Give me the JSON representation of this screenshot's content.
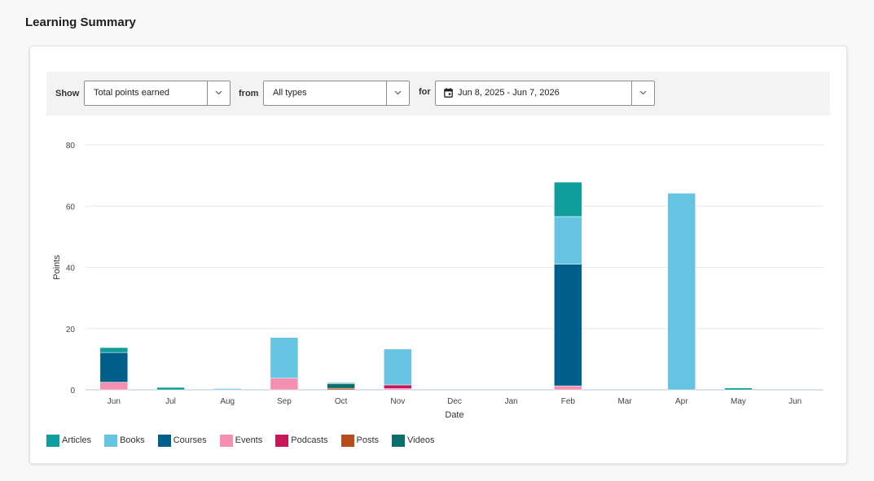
{
  "page": {
    "title": "Learning Summary"
  },
  "filters": {
    "show_label": "Show",
    "metric_value": "Total points earned",
    "from_label": "from",
    "type_value": "All types",
    "for_label": "for",
    "date_range_value": "Jun 8, 2025 - Jun 7, 2026"
  },
  "colors": {
    "Articles": "#0f9e9c",
    "Books": "#67c3e2",
    "Courses": "#005f8a",
    "Events": "#f590b0",
    "Podcasts": "#c4185a",
    "Posts": "#b84a1c",
    "Videos": "#0a6e6c"
  },
  "chart_data": {
    "type": "bar",
    "stacked": true,
    "xlabel": "Date",
    "ylabel": "Points",
    "ylim": [
      0,
      80
    ],
    "yticks": [
      0,
      20,
      40,
      60,
      80
    ],
    "grid": true,
    "legend_position": "bottom-left",
    "categories": [
      "Jun",
      "Jul",
      "Aug",
      "Sep",
      "Oct",
      "Nov",
      "Dec",
      "Jan",
      "Feb",
      "Mar",
      "Apr",
      "May",
      "Jun"
    ],
    "series": [
      {
        "name": "Events",
        "values": [
          2.5,
          0,
          0,
          3.8,
          0,
          0.4,
          0,
          0,
          1.3,
          0,
          0,
          0,
          0
        ]
      },
      {
        "name": "Podcasts",
        "values": [
          0,
          0,
          0,
          0,
          0,
          1.2,
          0,
          0,
          0,
          0,
          0,
          0,
          0
        ]
      },
      {
        "name": "Posts",
        "values": [
          0,
          0,
          0,
          0,
          0.5,
          0,
          0,
          0,
          0,
          0,
          0,
          0,
          0
        ]
      },
      {
        "name": "Courses",
        "values": [
          9.7,
          0,
          0,
          0,
          0,
          0,
          0,
          0,
          39.7,
          0,
          0,
          0,
          0
        ]
      },
      {
        "name": "Videos",
        "values": [
          0,
          0,
          0,
          0,
          1.5,
          0,
          0,
          0,
          0,
          0,
          0,
          0,
          0
        ]
      },
      {
        "name": "Books",
        "values": [
          0,
          0,
          0.4,
          13.3,
          0,
          11.7,
          0,
          0,
          15.6,
          0,
          64.2,
          0,
          0
        ]
      },
      {
        "name": "Articles",
        "values": [
          1.6,
          0.8,
          0,
          0,
          0.3,
          0,
          0,
          0,
          11.2,
          0,
          0,
          0.6,
          0
        ]
      }
    ],
    "legend": [
      "Articles",
      "Books",
      "Courses",
      "Events",
      "Podcasts",
      "Posts",
      "Videos"
    ]
  }
}
